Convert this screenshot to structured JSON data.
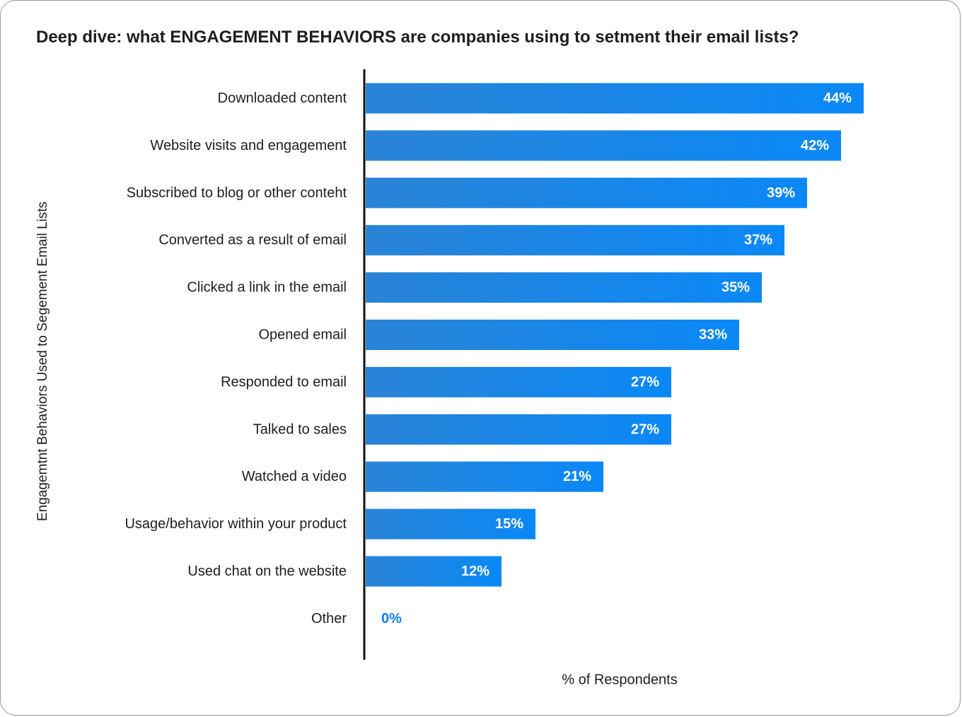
{
  "chart_data": {
    "type": "bar",
    "orientation": "horizontal",
    "title": "Deep dive: what ENGAGEMENT BEHAVIORS are companies using to setment their email lists?",
    "xlabel": "% of Respondents",
    "ylabel": "Engagemtnt Behaviors Used to Segement Email Lists",
    "categories": [
      "Downloaded content",
      "Website visits and engagement",
      "Subscribed to blog or other conteht",
      "Converted as a result of email",
      "Clicked a link in the email",
      "Opened email",
      "Responded to email",
      "Talked to sales",
      "Watched a video",
      "Usage/behavior within your product",
      "Used chat on the website",
      "Other"
    ],
    "values": [
      44,
      42,
      39,
      37,
      35,
      33,
      27,
      27,
      21,
      15,
      12,
      0
    ],
    "value_labels": [
      "44%",
      "42%",
      "39%",
      "37%",
      "35%",
      "33%",
      "27%",
      "27%",
      "21%",
      "15%",
      "12%",
      "0%"
    ],
    "grid": false,
    "legend": "none",
    "colors": {
      "bar_start": "#2a84d6",
      "bar_end": "#0a88f7",
      "label_inside": "#ffffff",
      "label_outside": "#0a7ff0",
      "axis": "#111111"
    }
  }
}
